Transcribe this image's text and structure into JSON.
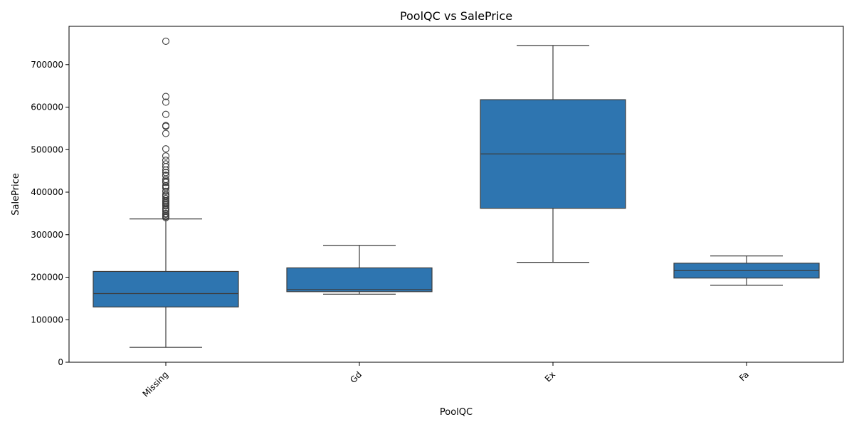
{
  "chart_data": {
    "type": "box",
    "title": "PoolQC vs SalePrice",
    "xlabel": "PoolQC",
    "ylabel": "SalePrice",
    "ylim": [
      0,
      790000
    ],
    "yticks": [
      0,
      100000,
      200000,
      300000,
      400000,
      500000,
      600000,
      700000
    ],
    "ytick_labels": [
      "0",
      "100000",
      "200000",
      "300000",
      "400000",
      "500000",
      "600000",
      "700000"
    ],
    "grid": false,
    "box_color": "#2e75b0",
    "categories": [
      "Missing",
      "Gd",
      "Ex",
      "Fa"
    ],
    "boxes": [
      {
        "category": "Missing",
        "whisker_low": 34900,
        "q1": 130000,
        "median": 161500,
        "q3": 213500,
        "whisker_high": 337000,
        "fliers": [
          755000,
          625000,
          611657,
          582933,
          556581,
          555000,
          538000,
          501837,
          485000,
          475000,
          466500,
          460000,
          451950,
          446261,
          440000,
          438780,
          430000,
          426000,
          423000,
          415298,
          412500,
          410000,
          402000,
          395000,
          392500,
          390000,
          385000,
          380000,
          377500,
          375000,
          372500,
          370000,
          367294,
          362500,
          359100,
          355000,
          350000,
          348000,
          345000,
          342643,
          340000
        ]
      },
      {
        "category": "Gd",
        "whisker_low": 160000,
        "q1": 166000,
        "median": 171000,
        "q3": 222000,
        "whisker_high": 274970,
        "fliers": []
      },
      {
        "category": "Ex",
        "whisker_low": 235000,
        "q1": 362000,
        "median": 490000,
        "q3": 617500,
        "whisker_high": 745000,
        "fliers": []
      },
      {
        "category": "Fa",
        "whisker_low": 181000,
        "q1": 198000,
        "median": 215500,
        "q3": 233000,
        "whisker_high": 250000,
        "fliers": []
      }
    ]
  }
}
